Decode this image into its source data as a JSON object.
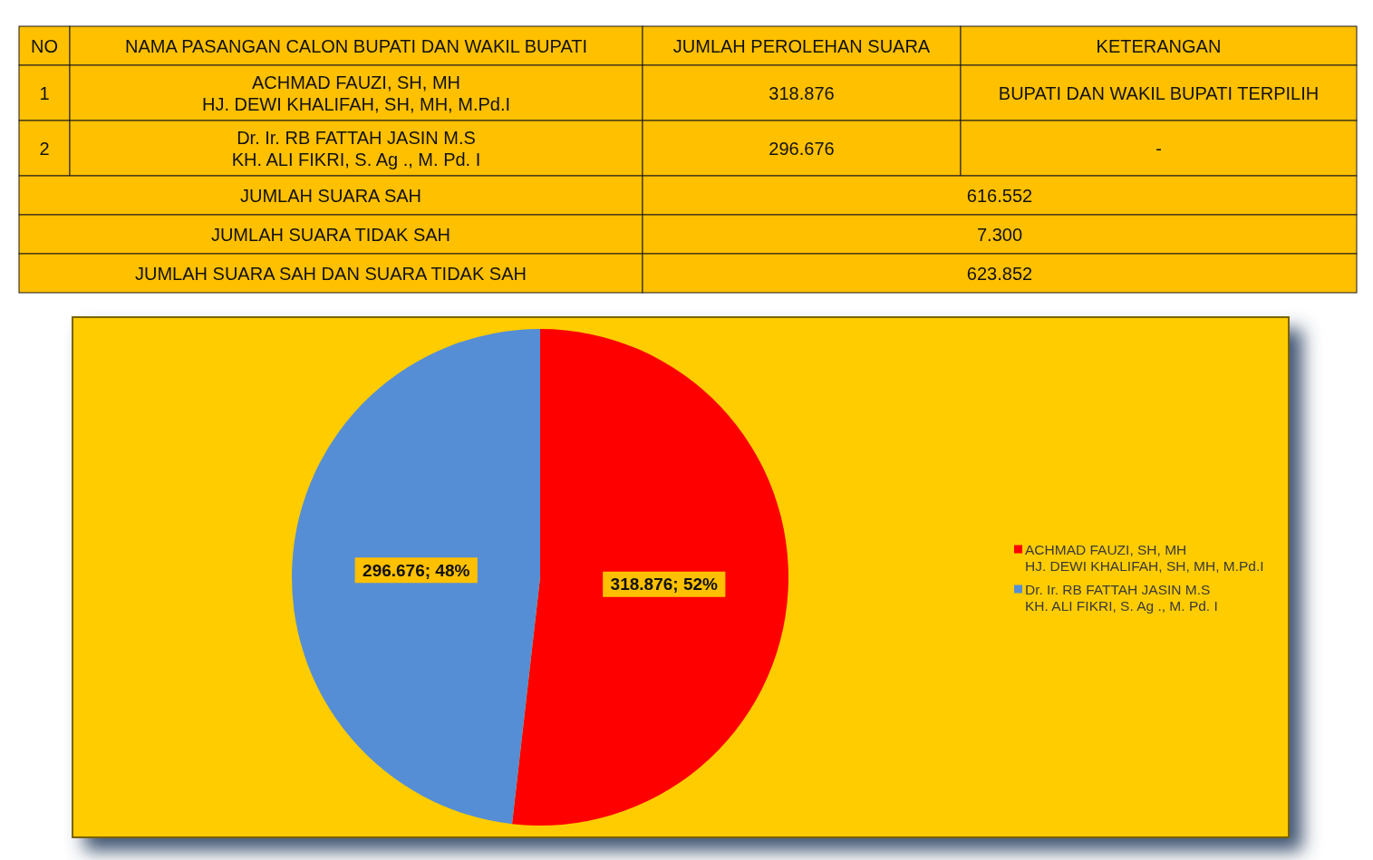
{
  "chart_data": [
    {
      "type": "other",
      "categories": [
        "NO",
        "NAMA PASANGAN CALON BUPATI DAN WAKIL BUPATI",
        "JUMLAH PEROLEHAN SUARA",
        "KETERANGAN"
      ],
      "cell_labels": [
        [
          "1",
          "ACHMAD FAUZI, SH, MH\nHJ. DEWI KHALIFAH, SH, MH, M.Pd.I",
          "318.876",
          "BUPATI DAN WAKIL BUPATI TERPILIH"
        ],
        [
          "2",
          "Dr. Ir. RB FATTAH JASIN M.S\nKH. ALI FIKRI, S. Ag ., M. Pd. I",
          "296.676",
          "-"
        ],
        [
          "JUMLAH SUARA SAH",
          null,
          "616.552",
          null
        ],
        [
          "JUMLAH SUARA TIDAK SAH",
          null,
          "7.300",
          null
        ],
        [
          "JUMLAH SUARA SAH DAN SUARA TIDAK SAH",
          null,
          "623.852",
          null
        ]
      ]
    },
    {
      "type": "pie",
      "categories": [
        "ACHMAD FAUZI, SH, MH\nHJ. DEWI KHALIFAH, SH, MH, M.Pd.I",
        "Dr. Ir. RB FATTAH JASIN M.S\nKH. ALI FIKRI, S. Ag ., M. Pd. I"
      ],
      "values": [
        318876,
        296676
      ],
      "colors": [
        "#ff0000",
        "#558ed5"
      ],
      "value_labels": [
        "318.876; 52%",
        "296.676; 48%"
      ],
      "legend": "right"
    }
  ]
}
